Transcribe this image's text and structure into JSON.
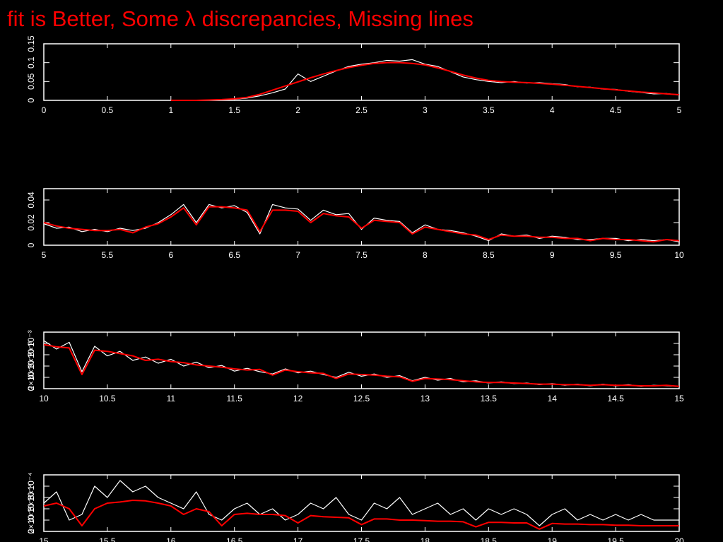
{
  "title": "fit is Better, Some λ discrepancies, Missing lines",
  "chart_data": [
    {
      "type": "line",
      "x": [
        1.0,
        1.1,
        1.2,
        1.3,
        1.4,
        1.5,
        1.6,
        1.7,
        1.8,
        1.9,
        2.0,
        2.1,
        2.2,
        2.3,
        2.4,
        2.5,
        2.6,
        2.7,
        2.8,
        2.9,
        3.0,
        3.1,
        3.2,
        3.3,
        3.4,
        3.5,
        3.6,
        3.7,
        3.8,
        3.9,
        4.0,
        4.1,
        4.2,
        4.3,
        4.4,
        4.5,
        4.6,
        4.7,
        4.8,
        4.9,
        5.0
      ],
      "series": [
        {
          "color": "#ffffff",
          "values": [
            0,
            0,
            0,
            0.001,
            0.001,
            0.003,
            0.006,
            0.012,
            0.02,
            0.03,
            0.07,
            0.05,
            0.064,
            0.078,
            0.09,
            0.096,
            0.1,
            0.106,
            0.104,
            0.108,
            0.096,
            0.09,
            0.076,
            0.062,
            0.055,
            0.05,
            0.047,
            0.05,
            0.046,
            0.047,
            0.044,
            0.042,
            0.036,
            0.035,
            0.03,
            0.029,
            0.024,
            0.021,
            0.017,
            0.018,
            0.014
          ]
        },
        {
          "color": "#ff0000",
          "values": [
            0,
            0,
            0,
            0.001,
            0.002,
            0.004,
            0.008,
            0.016,
            0.027,
            0.038,
            0.049,
            0.06,
            0.07,
            0.079,
            0.087,
            0.093,
            0.098,
            0.1,
            0.1,
            0.098,
            0.094,
            0.086,
            0.077,
            0.067,
            0.059,
            0.053,
            0.05,
            0.048,
            0.047,
            0.045,
            0.043,
            0.04,
            0.037,
            0.034,
            0.031,
            0.028,
            0.025,
            0.022,
            0.02,
            0.017,
            0.015
          ]
        }
      ],
      "xlim": [
        0,
        5
      ],
      "xticks": [
        0,
        0.5,
        1,
        1.5,
        2,
        2.5,
        3,
        3.5,
        4,
        4.5,
        5
      ],
      "ylim": [
        0,
        0.15
      ],
      "yticks": [
        0,
        0.05,
        0.1,
        0.15
      ]
    },
    {
      "type": "line",
      "x": [
        5.0,
        5.1,
        5.2,
        5.3,
        5.4,
        5.5,
        5.6,
        5.7,
        5.8,
        5.9,
        6.0,
        6.1,
        6.2,
        6.3,
        6.4,
        6.5,
        6.6,
        6.7,
        6.8,
        6.9,
        7.0,
        7.1,
        7.2,
        7.3,
        7.4,
        7.5,
        7.6,
        7.7,
        7.8,
        7.9,
        8.0,
        8.1,
        8.2,
        8.3,
        8.4,
        8.5,
        8.6,
        8.7,
        8.8,
        8.9,
        9.0,
        9.1,
        9.2,
        9.3,
        9.4,
        9.5,
        9.6,
        9.7,
        9.8,
        9.9,
        10.0
      ],
      "series": [
        {
          "color": "#ffffff",
          "values": [
            0.019,
            0.015,
            0.016,
            0.012,
            0.014,
            0.012,
            0.015,
            0.013,
            0.015,
            0.02,
            0.027,
            0.036,
            0.02,
            0.036,
            0.033,
            0.035,
            0.029,
            0.01,
            0.036,
            0.033,
            0.032,
            0.022,
            0.031,
            0.027,
            0.028,
            0.014,
            0.024,
            0.022,
            0.021,
            0.011,
            0.018,
            0.014,
            0.013,
            0.011,
            0.008,
            0.004,
            0.01,
            0.008,
            0.009,
            0.006,
            0.008,
            0.007,
            0.005,
            0.005,
            0.006,
            0.006,
            0.004,
            0.005,
            0.004,
            0.005,
            0.003
          ]
        },
        {
          "color": "#ff0000",
          "values": [
            0.02,
            0.017,
            0.015,
            0.014,
            0.013,
            0.013,
            0.014,
            0.011,
            0.016,
            0.019,
            0.025,
            0.033,
            0.018,
            0.034,
            0.034,
            0.033,
            0.031,
            0.012,
            0.031,
            0.031,
            0.03,
            0.02,
            0.028,
            0.026,
            0.025,
            0.015,
            0.022,
            0.021,
            0.02,
            0.01,
            0.016,
            0.014,
            0.012,
            0.01,
            0.009,
            0.005,
            0.009,
            0.008,
            0.008,
            0.007,
            0.007,
            0.006,
            0.006,
            0.004,
            0.006,
            0.005,
            0.005,
            0.004,
            0.003,
            0.005,
            0.004
          ]
        }
      ],
      "xlim": [
        5,
        10
      ],
      "xticks": [
        5,
        5.5,
        6,
        6.5,
        7,
        7.5,
        8,
        8.5,
        9,
        9.5,
        10
      ],
      "ylim": [
        0,
        0.05
      ],
      "yticks": [
        0,
        0.02,
        0.04
      ]
    },
    {
      "type": "line",
      "x": [
        10.0,
        10.1,
        10.2,
        10.3,
        10.4,
        10.5,
        10.6,
        10.7,
        10.8,
        10.9,
        11.0,
        11.1,
        11.2,
        11.3,
        11.4,
        11.5,
        11.6,
        11.7,
        11.8,
        11.9,
        12.0,
        12.1,
        12.2,
        12.3,
        12.4,
        12.5,
        12.6,
        12.7,
        12.8,
        12.9,
        13.0,
        13.1,
        13.2,
        13.3,
        13.4,
        13.5,
        13.6,
        13.7,
        13.8,
        13.9,
        14.0,
        14.1,
        14.2,
        14.3,
        14.4,
        14.5,
        14.6,
        14.7,
        14.8,
        14.9,
        15.0
      ],
      "series": [
        {
          "color": "#ffffff",
          "values": [
            0.0085,
            0.007,
            0.0082,
            0.003,
            0.0075,
            0.0058,
            0.0066,
            0.005,
            0.0056,
            0.0045,
            0.0052,
            0.004,
            0.0047,
            0.0037,
            0.0041,
            0.0031,
            0.0036,
            0.003,
            0.0026,
            0.0035,
            0.0028,
            0.0031,
            0.0025,
            0.002,
            0.0029,
            0.0022,
            0.0026,
            0.002,
            0.0023,
            0.0014,
            0.002,
            0.0015,
            0.0018,
            0.0012,
            0.0014,
            0.001,
            0.0012,
            0.0009,
            0.001,
            0.0007,
            0.0009,
            0.0006,
            0.0008,
            0.0005,
            0.0008,
            0.0005,
            0.0007,
            0.0004,
            0.0006,
            0.0005,
            0.0004
          ]
        },
        {
          "color": "#ff0000",
          "values": [
            0.0078,
            0.0074,
            0.0072,
            0.0025,
            0.0068,
            0.0066,
            0.0062,
            0.0058,
            0.005,
            0.0052,
            0.0048,
            0.0046,
            0.0042,
            0.004,
            0.0038,
            0.0035,
            0.0033,
            0.0034,
            0.0024,
            0.0033,
            0.003,
            0.0028,
            0.0027,
            0.0018,
            0.0026,
            0.0025,
            0.0024,
            0.0022,
            0.0021,
            0.0013,
            0.0018,
            0.0017,
            0.0016,
            0.0014,
            0.0012,
            0.0011,
            0.0011,
            0.001,
            0.0009,
            0.0008,
            0.0008,
            0.0007,
            0.0007,
            0.0006,
            0.0007,
            0.0006,
            0.0006,
            0.0005,
            0.0005,
            0.0006,
            0.0004
          ]
        }
      ],
      "xlim": [
        10,
        15
      ],
      "xticks": [
        10,
        10.5,
        11,
        11.5,
        12,
        12.5,
        13,
        13.5,
        14,
        14.5,
        15
      ],
      "ylim": [
        0,
        0.01
      ],
      "yticks": [
        0,
        {
          "value": 0.002,
          "label": "2×10⁻³"
        },
        {
          "value": 0.004,
          "label": "4×10⁻³"
        },
        {
          "value": 0.006,
          "label": "6×10⁻³"
        },
        {
          "value": 0.008,
          "label": "8×10⁻³"
        }
      ]
    },
    {
      "type": "line",
      "x": [
        15.0,
        15.1,
        15.2,
        15.3,
        15.4,
        15.5,
        15.6,
        15.7,
        15.8,
        15.9,
        16.0,
        16.1,
        16.2,
        16.3,
        16.4,
        16.5,
        16.6,
        16.7,
        16.8,
        16.9,
        17.0,
        17.1,
        17.2,
        17.3,
        17.4,
        17.5,
        17.6,
        17.7,
        17.8,
        17.9,
        18.0,
        18.1,
        18.2,
        18.3,
        18.4,
        18.5,
        18.6,
        18.7,
        18.8,
        18.9,
        19.0,
        19.1,
        19.2,
        19.3,
        19.4,
        19.5,
        19.6,
        19.7,
        19.8,
        19.9,
        20.0
      ],
      "series": [
        {
          "color": "#ffffff",
          "values": [
            0.0005,
            0.0007,
            0.0002,
            0.0003,
            0.0008,
            0.0006,
            0.0009,
            0.0007,
            0.0008,
            0.0006,
            0.0005,
            0.0004,
            0.0007,
            0.0003,
            0.0002,
            0.0004,
            0.0005,
            0.0003,
            0.0004,
            0.0002,
            0.0003,
            0.0005,
            0.0004,
            0.0006,
            0.0003,
            0.0002,
            0.0005,
            0.0004,
            0.0006,
            0.0003,
            0.0004,
            0.0005,
            0.0003,
            0.0004,
            0.0002,
            0.0004,
            0.0003,
            0.0004,
            0.0003,
            0.0001,
            0.0003,
            0.0004,
            0.0002,
            0.0003,
            0.0002,
            0.0003,
            0.0002,
            0.0003,
            0.0002,
            0.0002,
            0.0002
          ]
        },
        {
          "color": "#ff0000",
          "values": [
            0.00045,
            0.0005,
            0.0004,
            0.0001,
            0.0004,
            0.0005,
            0.00052,
            0.00055,
            0.00054,
            0.0005,
            0.00045,
            0.0003,
            0.0004,
            0.00035,
            0.0001,
            0.0003,
            0.00032,
            0.0003,
            0.0003,
            0.00028,
            0.00015,
            0.00028,
            0.00026,
            0.00025,
            0.00024,
            0.00012,
            0.00022,
            0.00022,
            0.0002,
            0.0002,
            0.00019,
            0.00018,
            0.00018,
            0.00017,
            8e-05,
            0.00016,
            0.00016,
            0.00015,
            0.00015,
            4e-05,
            0.00014,
            0.00013,
            0.00013,
            0.00012,
            0.00012,
            0.00011,
            0.00011,
            0.0001,
            0.0001,
            0.0001,
            0.0001
          ]
        }
      ],
      "xlim": [
        15,
        20
      ],
      "xticks": [
        15,
        15.5,
        16,
        16.5,
        17,
        17.5,
        18,
        18.5,
        19,
        19.5,
        20
      ],
      "ylim": [
        0,
        0.001
      ],
      "yticks": [
        0,
        {
          "value": 0.0002,
          "label": "2×10⁻⁴"
        },
        {
          "value": 0.0004,
          "label": "4×10⁻⁴"
        },
        {
          "value": 0.0006,
          "label": "6×10⁻⁴"
        },
        {
          "value": 0.0008,
          "label": "8×10⁻⁴"
        }
      ]
    }
  ]
}
